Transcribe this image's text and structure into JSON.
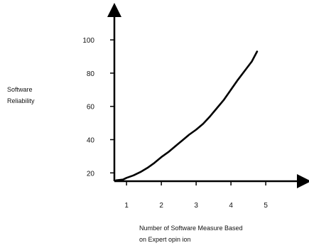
{
  "chart_data": {
    "type": "line",
    "title": "",
    "ylabel_lines": [
      "Software",
      "Reliability"
    ],
    "xlabel_lines": [
      "Number of Software Measure Based",
      "on Expert opin ion"
    ],
    "x_ticks": [
      "1",
      "2",
      "3",
      "4",
      "5"
    ],
    "y_ticks": [
      "20",
      "40",
      "60",
      "80",
      "100"
    ],
    "xlim": [
      0.65,
      6.1
    ],
    "ylim": [
      15,
      118
    ],
    "grid": false,
    "legend": "none",
    "line_color": "#000000",
    "series": [
      {
        "x": [
          0.7,
          0.9,
          1.0,
          1.2,
          1.4,
          1.6,
          1.8,
          2.0,
          2.2,
          2.4,
          2.6,
          2.8,
          3.0,
          3.2,
          3.4,
          3.6,
          3.8,
          4.0,
          4.2,
          4.4,
          4.6,
          4.75
        ],
        "y": [
          15.5,
          16,
          17,
          18.5,
          20.5,
          23,
          26,
          29.5,
          32.5,
          36,
          39.5,
          43,
          46,
          49.5,
          54,
          59,
          64,
          70,
          76,
          81.5,
          87,
          93
        ]
      }
    ]
  }
}
